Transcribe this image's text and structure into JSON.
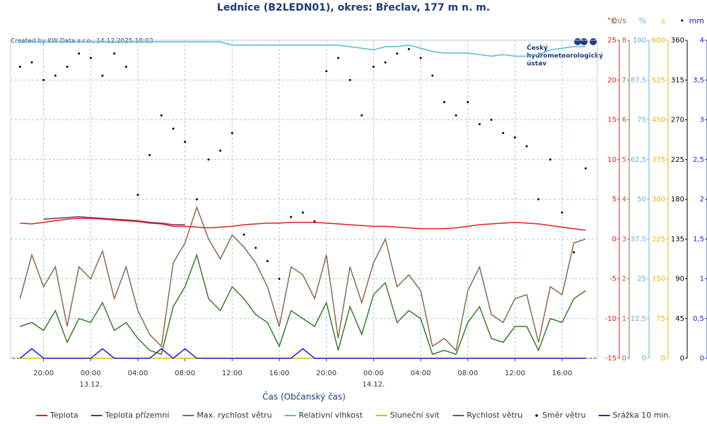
{
  "chart_data": {
    "type": "line",
    "title": "Lednice (B2LEDN01), okres: Břeclav, 177 m n. m.",
    "credit": "Created by KW Data s.r.o., 14.12.2025 18:03",
    "logo": [
      "Český",
      "hydrometeorologický",
      "ústav"
    ],
    "x_label": "Čas (Občanský čas)",
    "grid": true,
    "xlim": [
      -6.8,
      43
    ],
    "xticks": [
      {
        "value": -4,
        "label": "20:00"
      },
      {
        "value": 0,
        "label": "00:00"
      },
      {
        "value": 4,
        "label": "04:00"
      },
      {
        "value": 8,
        "label": "08:00"
      },
      {
        "value": 12,
        "label": "12:00"
      },
      {
        "value": 16,
        "label": "16:00"
      },
      {
        "value": 20,
        "label": "20:00"
      },
      {
        "value": 24,
        "label": "00:00"
      },
      {
        "value": 28,
        "label": "04:00"
      },
      {
        "value": 32,
        "label": "08:00"
      },
      {
        "value": 36,
        "label": "12:00"
      },
      {
        "value": 40,
        "label": "16:00"
      }
    ],
    "xdates": [
      {
        "value": 0,
        "label": "13.12."
      },
      {
        "value": 24,
        "label": "14.12."
      }
    ],
    "axes": [
      {
        "label": "°C",
        "color": "#e02020",
        "lim": [
          -15,
          25
        ],
        "ticks": [
          -15,
          -10,
          -5,
          0,
          5,
          10,
          15,
          20,
          25
        ]
      },
      {
        "label": "m/s",
        "color": "#8b6a4a",
        "lim": [
          0,
          8
        ],
        "ticks": [
          0,
          1,
          2,
          3,
          4,
          5,
          6,
          7,
          8
        ]
      },
      {
        "label": "%",
        "color": "#5ab8d0",
        "lim": [
          0,
          100
        ],
        "ticks": [
          0,
          {
            "value": 12.5,
            "label": "12,5"
          },
          25,
          {
            "value": 37.5,
            "label": "37,5"
          },
          50,
          {
            "value": 62.5,
            "label": "62,5"
          },
          75,
          {
            "value": 87.5,
            "label": "87,5"
          },
          100
        ]
      },
      {
        "label": "s",
        "color": "#e8b400",
        "lim": [
          0,
          600
        ],
        "ticks": [
          0,
          75,
          150,
          225,
          300,
          375,
          450,
          525,
          600
        ]
      },
      {
        "label": "•",
        "color": "#000000",
        "lim": [
          0,
          360
        ],
        "ticks": [
          0,
          45,
          90,
          135,
          180,
          225,
          270,
          315,
          360
        ]
      },
      {
        "label": "mm",
        "color": "#2020c0",
        "lim": [
          0,
          4
        ],
        "ticks": [
          0,
          {
            "value": 0.5,
            "label": "0,5"
          },
          1,
          {
            "value": 1.5,
            "label": "1,5"
          },
          2,
          {
            "value": 2.5,
            "label": "2,5"
          },
          3,
          {
            "value": 3.5,
            "label": "3,5"
          },
          4
        ]
      }
    ],
    "x": [
      -6,
      -5,
      -4,
      -3,
      -2,
      -1,
      0,
      1,
      2,
      3,
      4,
      5,
      6,
      7,
      8,
      9,
      10,
      11,
      12,
      13,
      14,
      15,
      16,
      17,
      18,
      19,
      20,
      21,
      22,
      23,
      24,
      25,
      26,
      27,
      28,
      29,
      30,
      31,
      32,
      33,
      34,
      35,
      36,
      37,
      38,
      39,
      40,
      41,
      42
    ],
    "series": [
      {
        "name": "Teplota",
        "color": "#e02020",
        "axis": 0,
        "style": "line",
        "values": [
          2.0,
          1.9,
          2.1,
          2.3,
          2.5,
          2.6,
          2.6,
          2.5,
          2.4,
          2.3,
          2.2,
          2.0,
          1.9,
          1.6,
          1.6,
          1.5,
          1.4,
          1.5,
          1.6,
          1.8,
          1.9,
          2.0,
          2.0,
          2.1,
          2.1,
          2.1,
          2.0,
          1.9,
          1.8,
          1.7,
          1.6,
          1.6,
          1.5,
          1.4,
          1.3,
          1.3,
          1.3,
          1.4,
          1.6,
          1.8,
          1.9,
          2.0,
          2.1,
          2.0,
          1.9,
          1.7,
          1.5,
          1.3,
          1.1
        ]
      },
      {
        "name": "Teplota přízemní",
        "color": "#8a2060",
        "axis": 0,
        "style": "line",
        "values": [
          null,
          null,
          2.5,
          2.6,
          2.7,
          2.8,
          2.7,
          2.6,
          2.5,
          2.4,
          2.3,
          2.1,
          2.0,
          1.8,
          1.8,
          null,
          null,
          null,
          null,
          null,
          null,
          null,
          null,
          null,
          null,
          null,
          null,
          null,
          null,
          null,
          null,
          null,
          null,
          null,
          null,
          null,
          null,
          null,
          null,
          null,
          null,
          null,
          null,
          null,
          null,
          null,
          null,
          null,
          null
        ]
      },
      {
        "name": "Max. rychlost větru",
        "color": "#8b6a4a",
        "axis": 1,
        "style": "line",
        "values": [
          1.5,
          2.6,
          1.8,
          2.3,
          0.8,
          2.3,
          2.0,
          2.7,
          1.5,
          2.3,
          1.2,
          0.6,
          0.3,
          2.4,
          2.9,
          3.8,
          3.0,
          2.5,
          3.1,
          2.8,
          2.4,
          1.8,
          0.8,
          2.3,
          2.1,
          1.5,
          2.6,
          0.5,
          2.3,
          1.4,
          2.4,
          3.0,
          1.8,
          2.1,
          1.7,
          0.3,
          0.5,
          0.2,
          1.7,
          2.3,
          1.1,
          0.9,
          1.5,
          1.6,
          0.4,
          1.8,
          1.6,
          2.9,
          3.0
        ]
      },
      {
        "name": "Relativní vlhkost",
        "color": "#5ab8d0",
        "axis": 2,
        "style": "line",
        "values": [
          99.5,
          99.5,
          99.5,
          99.5,
          99.5,
          99.5,
          99.5,
          99.5,
          99.5,
          99.5,
          99.5,
          99.5,
          99.5,
          99.5,
          99.5,
          99.5,
          99.5,
          99.5,
          98.5,
          98.5,
          98.5,
          98.5,
          98.5,
          98.5,
          98.5,
          98.5,
          98.5,
          98.5,
          98,
          97.5,
          97,
          98,
          98,
          98.5,
          97.5,
          96.5,
          96,
          96,
          96,
          95.5,
          95,
          95.5,
          95,
          95,
          95.5,
          97,
          97.5,
          98,
          98
        ]
      },
      {
        "name": "Sluneční svit",
        "color": "#e8b400",
        "axis": 3,
        "style": "line",
        "values": [
          0,
          0,
          0,
          0,
          0,
          0,
          0,
          0,
          0,
          0,
          0,
          0,
          0,
          0,
          0,
          0,
          0,
          0,
          0,
          0,
          0,
          0,
          0,
          0,
          0,
          0,
          0,
          0,
          0,
          0,
          0,
          0,
          0,
          0,
          0,
          0,
          0,
          0,
          0,
          0,
          0,
          0,
          0,
          0,
          0,
          0,
          0,
          0,
          0
        ]
      },
      {
        "name": "Rychlost větru",
        "color": "#3a7a2a",
        "axis": 1,
        "style": "line",
        "values": [
          0.8,
          0.9,
          0.7,
          1.2,
          0.4,
          1.0,
          0.9,
          1.4,
          0.7,
          0.9,
          0.5,
          0.2,
          0.1,
          1.3,
          1.8,
          2.6,
          1.5,
          1.2,
          1.8,
          1.5,
          1.1,
          0.9,
          0.3,
          1.2,
          1.0,
          0.8,
          1.4,
          0.2,
          1.3,
          0.6,
          1.6,
          1.9,
          0.9,
          1.2,
          1.0,
          0.1,
          0.2,
          0.1,
          0.9,
          1.3,
          0.5,
          0.4,
          0.8,
          0.8,
          0.2,
          1.0,
          0.9,
          1.5,
          1.7
        ]
      },
      {
        "name": "Směr větru",
        "color": "#000000",
        "axis": 4,
        "style": "dots",
        "values": [
          330,
          335,
          315,
          320,
          330,
          345,
          340,
          320,
          345,
          330,
          185,
          230,
          275,
          260,
          245,
          180,
          225,
          235,
          255,
          140,
          125,
          110,
          90,
          160,
          165,
          155,
          325,
          340,
          315,
          275,
          330,
          335,
          345,
          350,
          340,
          320,
          290,
          275,
          290,
          265,
          270,
          255,
          250,
          240,
          180,
          225,
          165,
          120,
          215
        ]
      },
      {
        "name": "Srážka 10 min.",
        "color": "#2020e0",
        "axis": 5,
        "style": "line",
        "values": [
          0,
          0.12,
          0,
          0,
          0,
          0,
          0,
          0.12,
          0,
          0,
          0,
          0,
          0.12,
          0,
          0.12,
          0,
          0,
          0,
          0,
          0,
          0,
          0,
          0,
          0,
          0.12,
          0,
          0,
          0,
          0,
          0,
          0,
          0,
          0,
          0,
          0,
          0,
          0,
          0,
          0,
          0,
          0,
          0,
          0,
          0,
          0,
          0,
          0,
          0,
          0
        ]
      }
    ]
  }
}
